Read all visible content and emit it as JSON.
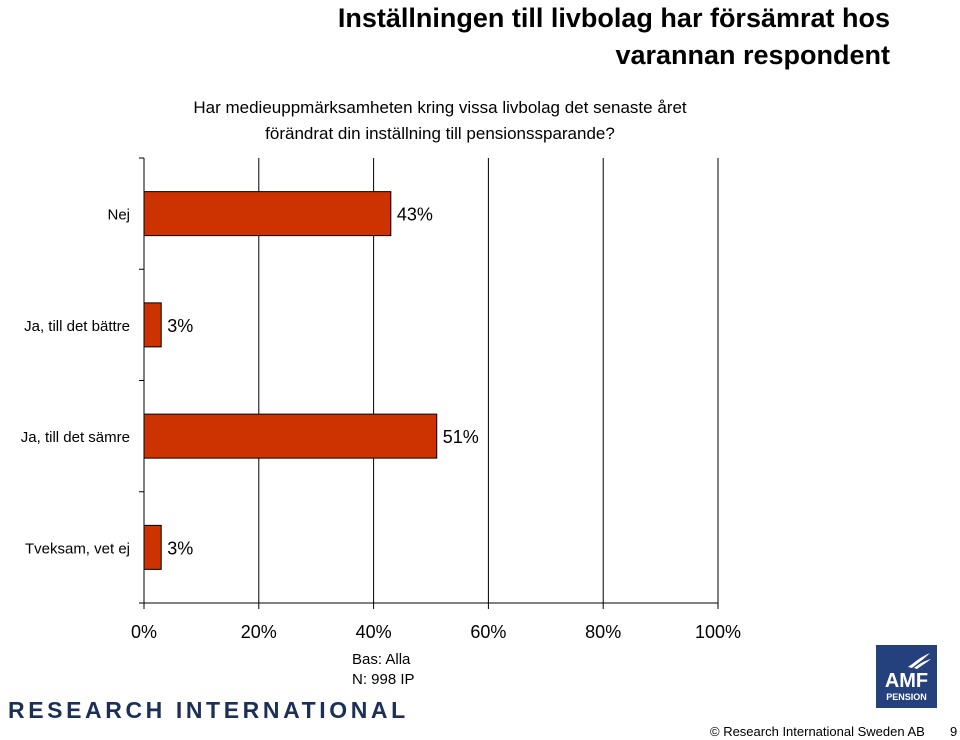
{
  "title_line1": "Inställningen till livbolag har försämrat hos",
  "title_line2": "varannan respondent",
  "question_line1": "Har medieuppmärksamheten kring vissa livbolag det senaste året",
  "question_line2": "förändrat din inställning till pensionssparande?",
  "base_line1": "Bas: Alla",
  "base_line2": "N: 998 IP",
  "logo_left_text": "RESEARCH INTERNATIONAL",
  "logo_right_text": "AMF",
  "logo_right_subtext": "PENSION",
  "copyright": "© Research International Sweden AB",
  "page_number": "9",
  "colors": {
    "bar": "#cc3300",
    "grid": "#000000"
  },
  "chart_data": {
    "type": "bar",
    "orientation": "horizontal",
    "categories": [
      "Nej",
      "Ja, till det bättre",
      "Ja, till det sämre",
      "Tveksam, vet ej"
    ],
    "values": [
      43,
      3,
      51,
      3
    ],
    "value_labels": [
      "43%",
      "3%",
      "51%",
      "3%"
    ],
    "xlim": [
      0,
      100
    ],
    "xticks": [
      0,
      20,
      40,
      60,
      80,
      100
    ],
    "xtick_labels": [
      "0%",
      "20%",
      "40%",
      "60%",
      "80%",
      "100%"
    ],
    "grid": true,
    "legend": "none"
  }
}
